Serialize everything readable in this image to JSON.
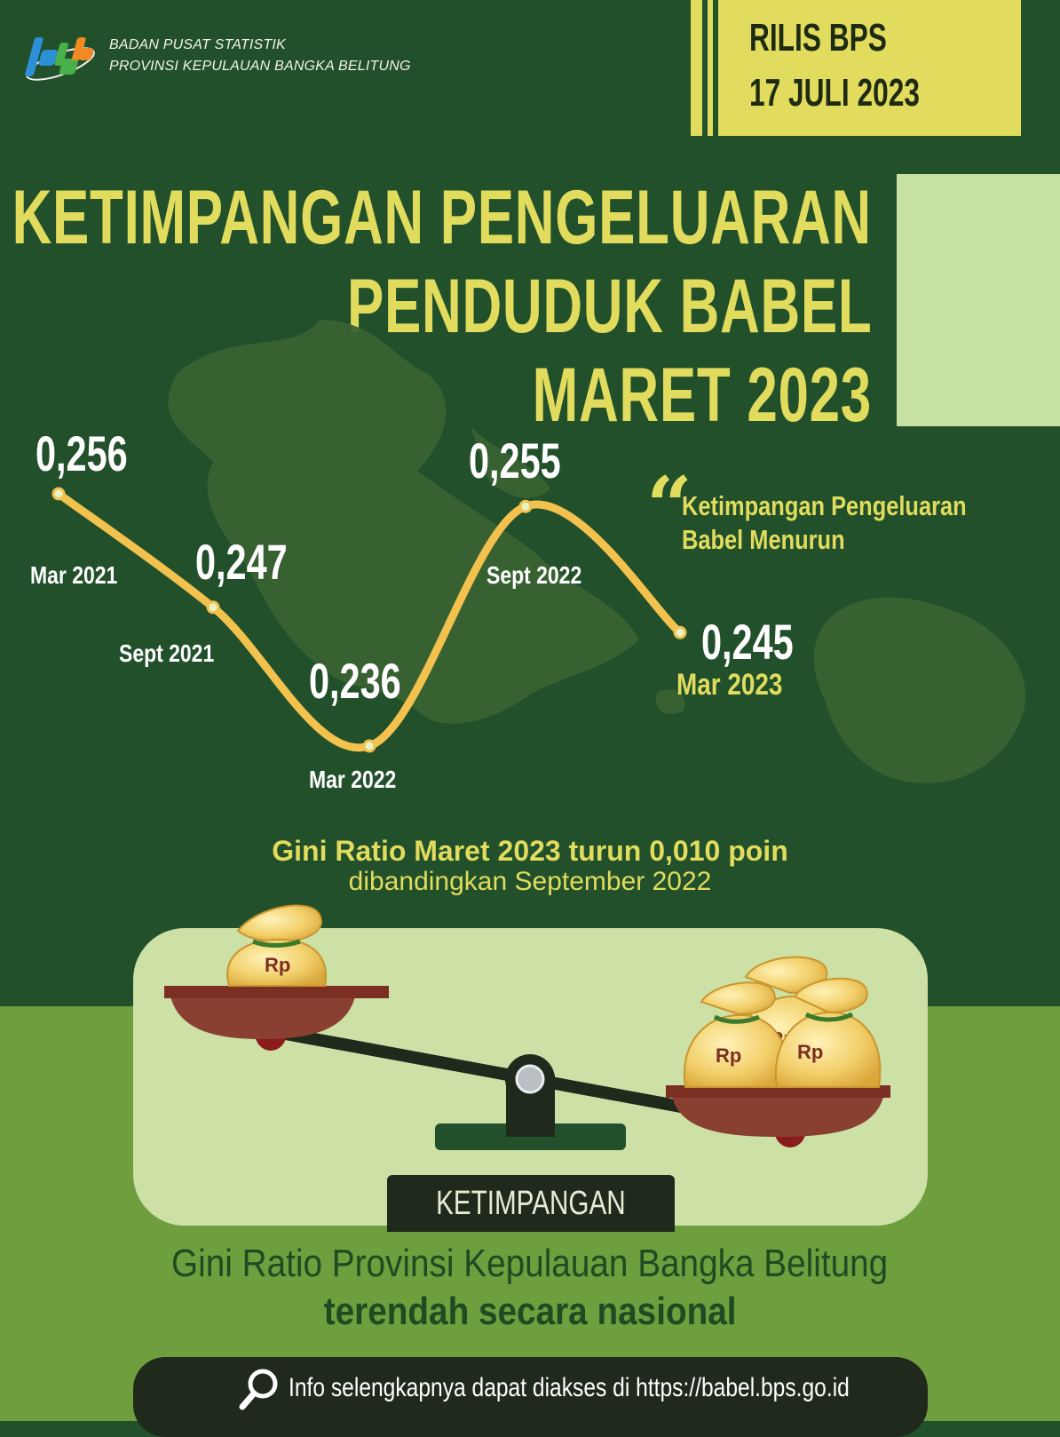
{
  "header": {
    "org_line1": "BADAN PUSAT STATISTIK",
    "org_line2": "PROVINSI KEPULAUAN BANGKA BELITUNG",
    "release_label": "RILIS BPS",
    "release_date": "17 JULI 2023"
  },
  "title": {
    "line1": "KETIMPANGAN PENGELUARAN",
    "line2": "PENDUDUK BABEL",
    "line3": "MARET 2023"
  },
  "chart_data": {
    "type": "line",
    "categories": [
      "Mar 2021",
      "Sept 2021",
      "Mar 2022",
      "Sept 2022",
      "Mar 2023"
    ],
    "values": [
      0.256,
      0.247,
      0.236,
      0.255,
      0.245
    ],
    "value_labels": [
      "0,256",
      "0,247",
      "0,236",
      "0,255",
      "0,245"
    ],
    "title": "",
    "xlabel": "",
    "ylabel": "",
    "grid": false,
    "line_color": "#f2c14e",
    "point_color": "#e6f3c7"
  },
  "quote": {
    "mark": "“",
    "line1": "Ketimpangan Pengeluaran",
    "line2": "Babel Menurun"
  },
  "summary": {
    "line1": "Gini Ratio Maret 2023 turun 0,010 poin",
    "line2": "dibandingkan September 2022"
  },
  "scale": {
    "bag_label": "Rp",
    "base_label": "KETIMPANGAN"
  },
  "conclusion": {
    "line1": "Gini Ratio Provinsi Kepulauan Bangka Belitung",
    "line2": "terendah secara nasional"
  },
  "footer": {
    "text": "Info selengkapnya dapat diakses di https://babel.bps.go.id",
    "icon": "search-icon"
  },
  "colors": {
    "dark_green": "#21502a",
    "light_green": "#6e9e3d",
    "yellow": "#e1dc5e",
    "pale_green": "#cde0a5"
  }
}
